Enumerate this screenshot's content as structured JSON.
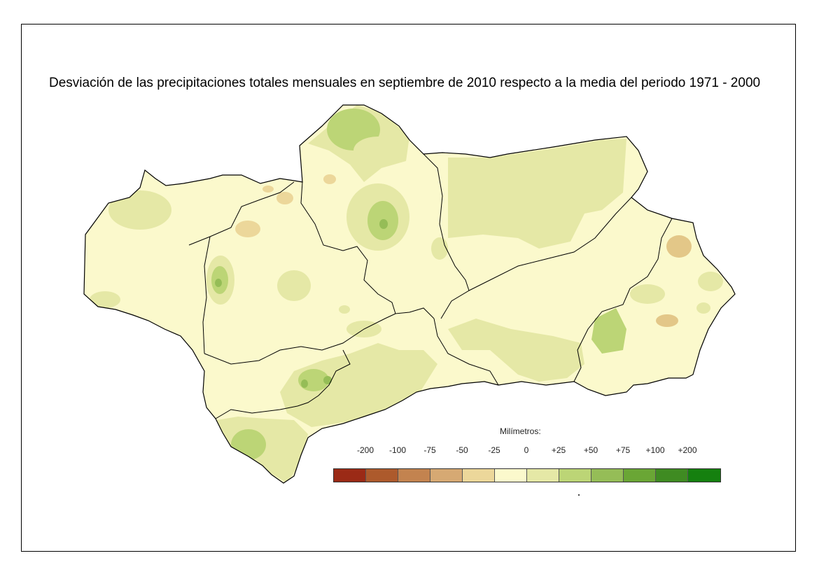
{
  "title": "Desviación de las precipitaciones totales mensuales en septiembre de 2010 respecto a la media del periodo 1971 - 2000",
  "legend": {
    "title": "Milímetros:",
    "labels": [
      "-200",
      "-100",
      "-75",
      "-50",
      "-25",
      "0",
      "+25",
      "+50",
      "+75",
      "+100",
      "+200"
    ],
    "classes": [
      {
        "color": "#9b2a16"
      },
      {
        "color": "#ad5a2c"
      },
      {
        "color": "#c3834f"
      },
      {
        "color": "#d6a973"
      },
      {
        "color": "#ecd79a"
      },
      {
        "color": "#fbf9cc"
      },
      {
        "color": "#e5e8a6"
      },
      {
        "color": "#bcd576"
      },
      {
        "color": "#95bd57"
      },
      {
        "color": "#6aa635"
      },
      {
        "color": "#3f8b22"
      },
      {
        "color": "#15800f"
      }
    ]
  },
  "map_colors": {
    "base": "#fbf9cc",
    "light_green": "#e5e8a6",
    "mid_green": "#bcd576",
    "green": "#95bd57",
    "dark_green": "#6aa635",
    "light_brown": "#ecd79a",
    "tan": "#e3c788"
  }
}
